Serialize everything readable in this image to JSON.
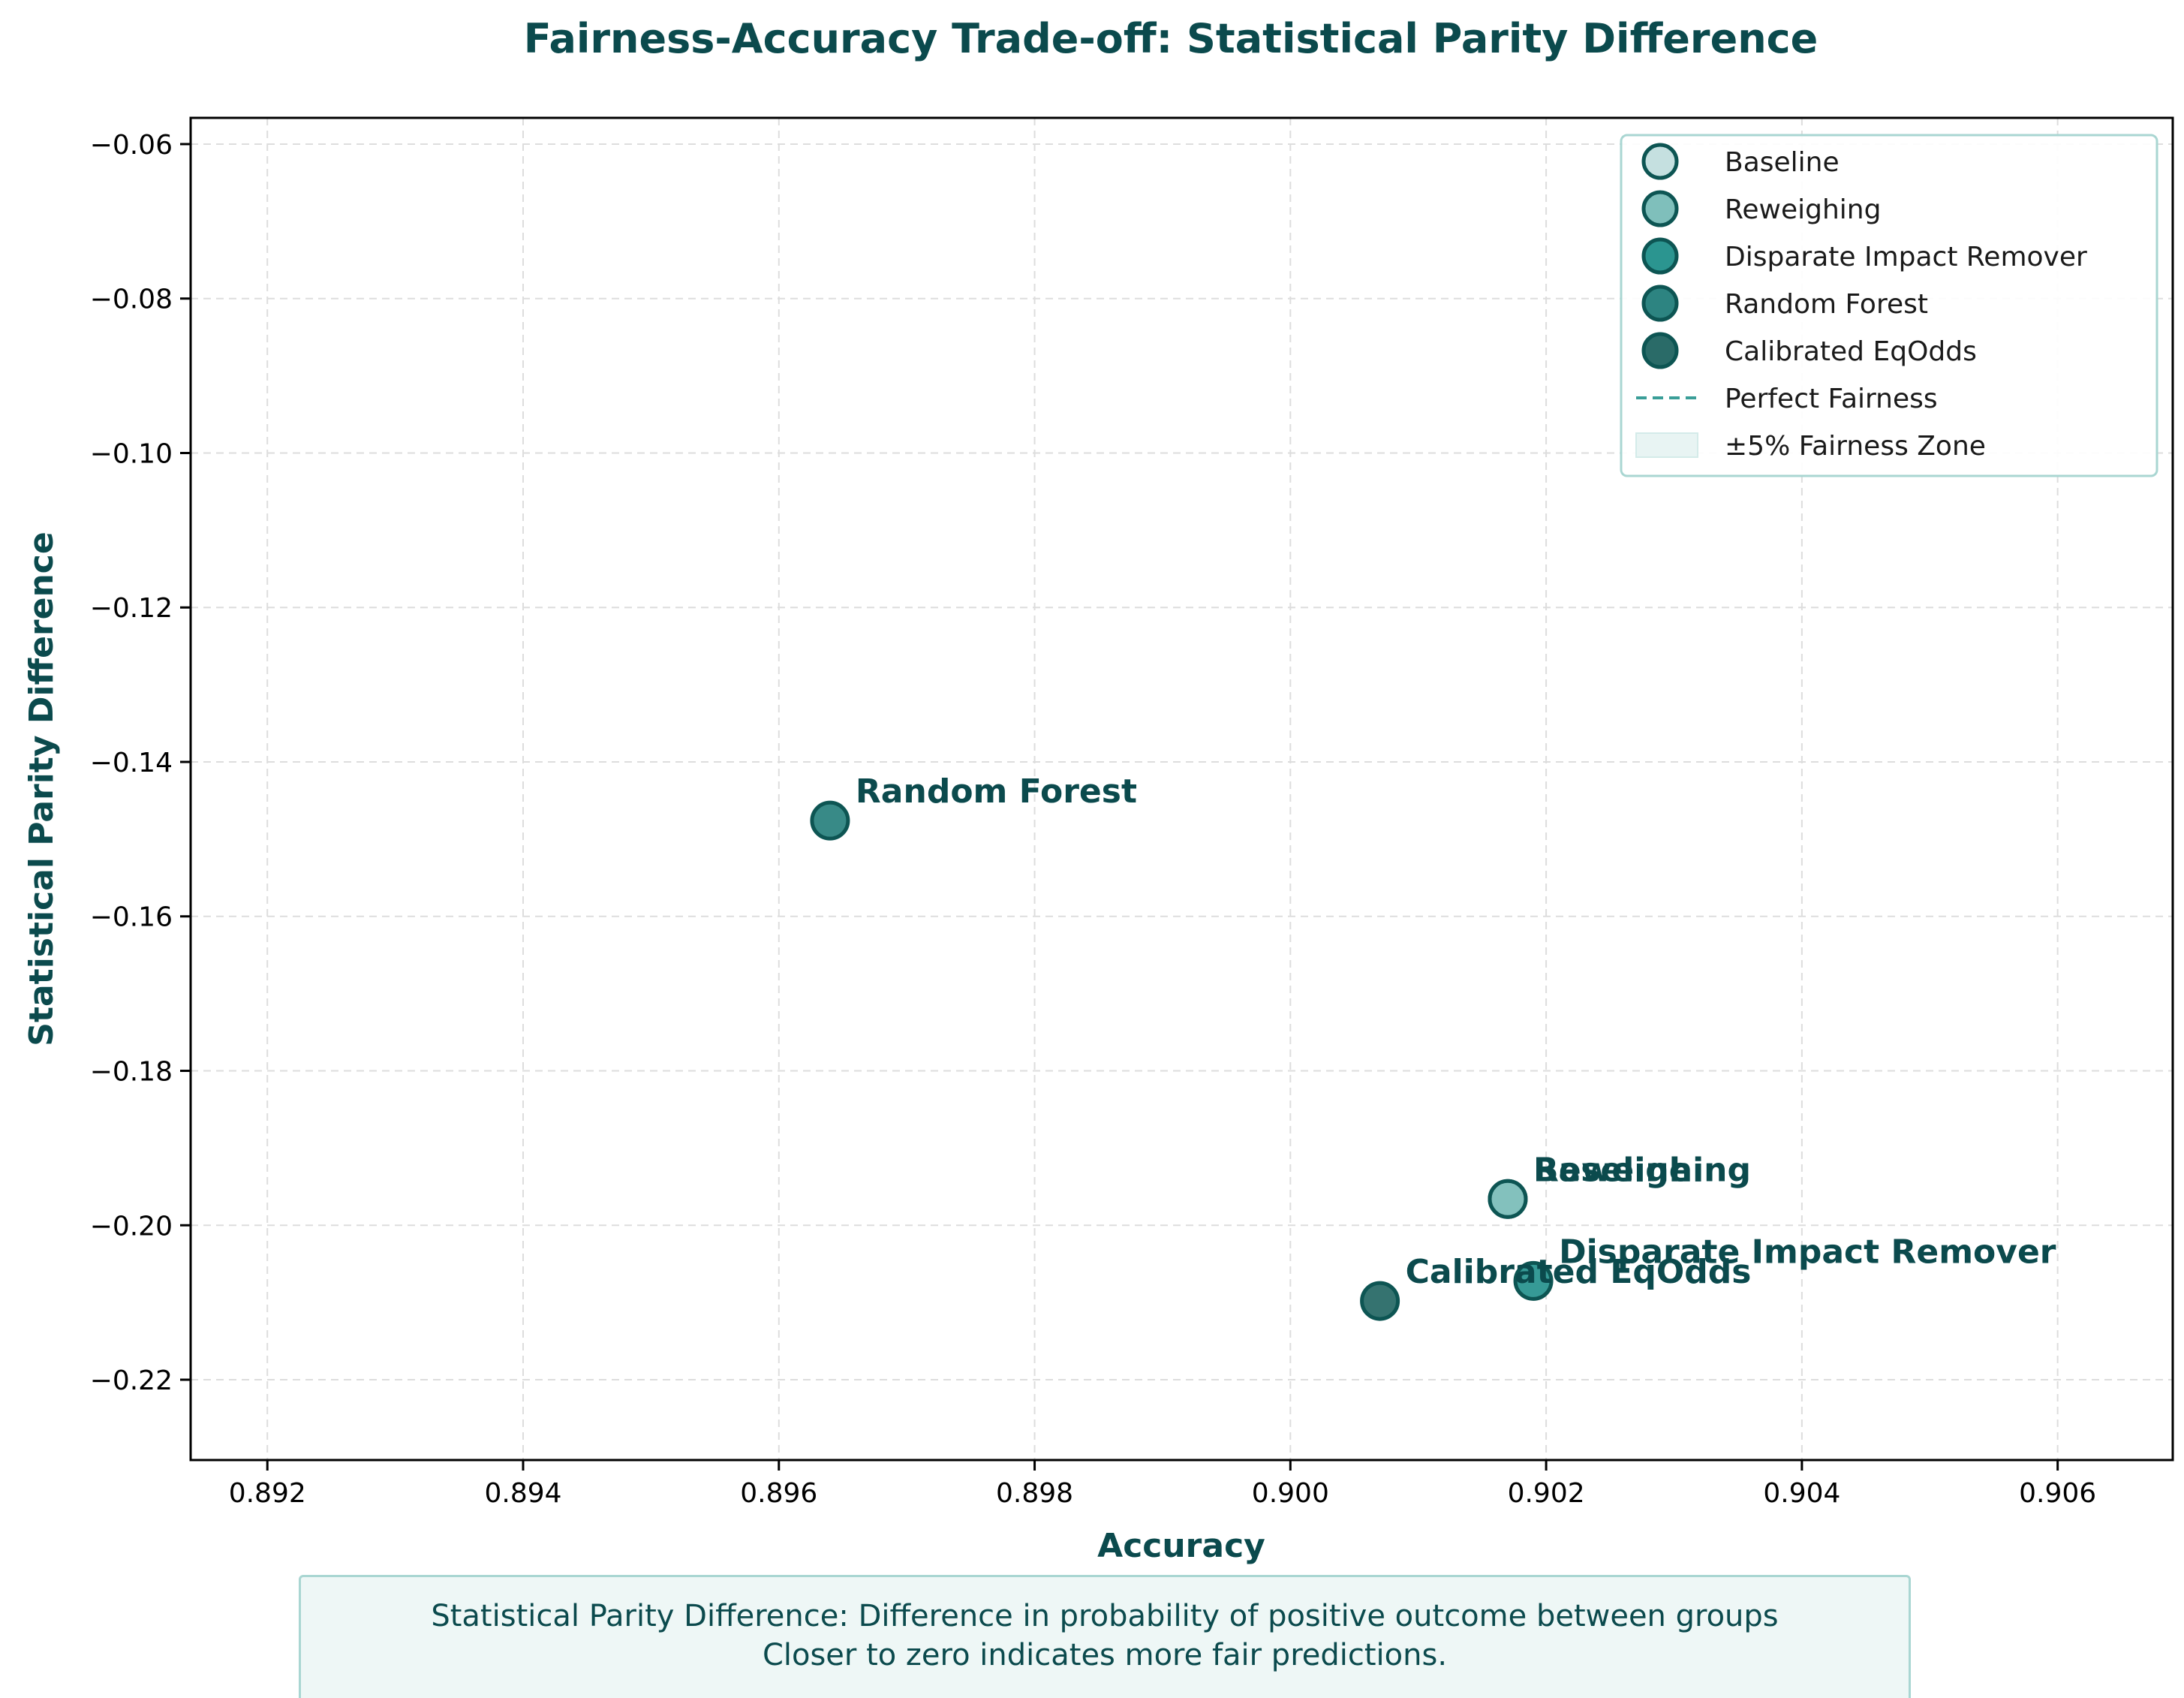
{
  "chart_data": {
    "type": "scatter",
    "title": "Fairness-Accuracy Trade-off: Statistical Parity Difference",
    "xlabel": "Accuracy",
    "ylabel": "Statistical Parity Difference",
    "xlim": [
      0.8914,
      0.9069
    ],
    "ylim": [
      -0.2304,
      -0.0566
    ],
    "xticks": [
      0.892,
      0.894,
      0.896,
      0.898,
      0.9,
      0.902,
      0.904,
      0.906
    ],
    "yticks": [
      -0.22,
      -0.2,
      -0.18,
      -0.16,
      -0.14,
      -0.12,
      -0.1,
      -0.08,
      -0.06
    ],
    "xtick_labels": [
      "0.892",
      "0.894",
      "0.896",
      "0.898",
      "0.900",
      "0.902",
      "0.904",
      "0.906"
    ],
    "ytick_labels": [
      "−0.22",
      "−0.20",
      "−0.18",
      "−0.16",
      "−0.14",
      "−0.12",
      "−0.10",
      "−0.08",
      "−0.06"
    ],
    "grid": true,
    "legend_position": "top-right",
    "series": [
      {
        "name": "Baseline",
        "x": 0.9017,
        "y": -0.1966,
        "color": "#c5e0e0"
      },
      {
        "name": "Reweighing",
        "x": 0.9017,
        "y": -0.1966,
        "color": "#7fbfbb"
      },
      {
        "name": "Disparate Impact Remover",
        "x": 0.9019,
        "y": -0.2072,
        "color": "#2b9590"
      },
      {
        "name": "Random Forest",
        "x": 0.8964,
        "y": -0.1476,
        "color": "#2d8481"
      },
      {
        "name": "Calibrated EqOdds",
        "x": 0.9007,
        "y": -0.2098,
        "color": "#2a6b68"
      }
    ],
    "reference_line": {
      "name": "Perfect Fairness",
      "y": 0,
      "color": "#3a9e98"
    },
    "fairness_zone": {
      "name": "±5% Fairness Zone",
      "range": [
        -0.05,
        0.05
      ],
      "color": "#e8f4f3"
    }
  },
  "note": {
    "line1": "Statistical Parity Difference: Difference in probability of positive outcome between groups",
    "line2": "Closer to zero indicates more fair predictions."
  },
  "colors": {
    "text": "#0b4a4d",
    "marker_edge": "#0d5553",
    "grid": "#dddddd",
    "legend_border": "#a9d6d2"
  }
}
